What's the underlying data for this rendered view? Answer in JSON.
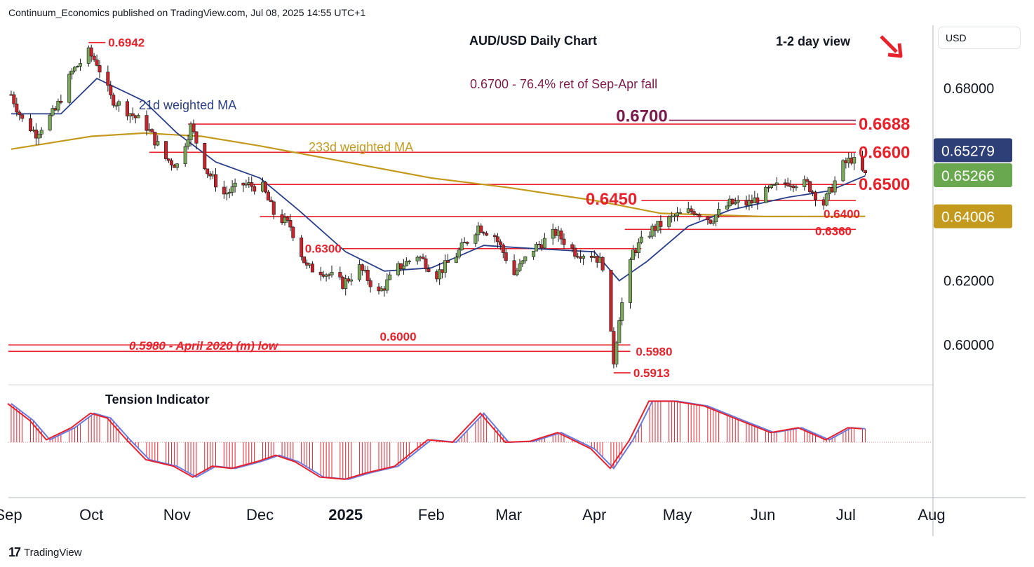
{
  "header": {
    "attribution": "Continuum_Economics published on TradingView.com, Jul 08, 2025 14:55 UTC+1",
    "currency_button": "USD"
  },
  "footer": {
    "logo_text": "TradingView",
    "logo_mark": "17"
  },
  "colors": {
    "red": "#e8212b",
    "dark_red": "#8a1a1a",
    "maroon": "#7a1a4a",
    "navy": "#2a3f8a",
    "gold": "#c49a1e",
    "tension_line": "#6a7be0",
    "green_badge": "#6aa84f",
    "blue_badge": "#2e3f78",
    "gold_badge": "#c49a1e",
    "candle_up": "#7aa85a",
    "candle_down": "#c8242c",
    "candle_outline": "#1a1a1a"
  },
  "chart_data": {
    "type": "candlestick",
    "title": "AUD/USD Daily Chart",
    "view_label": "1-2 day view",
    "view_arrow": "down-right-arrow",
    "y_ticks": [
      "0.68000",
      "0.62000",
      "0.60000"
    ],
    "ylim": [
      0.5878,
      0.6996
    ],
    "x_ticks": [
      {
        "label": "Sep",
        "date": "2024-09-01"
      },
      {
        "label": "Oct",
        "date": "2024-10-01"
      },
      {
        "label": "Nov",
        "date": "2024-11-01"
      },
      {
        "label": "Dec",
        "date": "2024-12-01"
      },
      {
        "label": "2025",
        "date": "2025-01-01",
        "bold": true
      },
      {
        "label": "Feb",
        "date": "2025-02-01"
      },
      {
        "label": "Mar",
        "date": "2025-03-01"
      },
      {
        "label": "Apr",
        "date": "2025-04-01"
      },
      {
        "label": "May",
        "date": "2025-05-01"
      },
      {
        "label": "Jun",
        "date": "2025-06-01"
      },
      {
        "label": "Jul",
        "date": "2025-07-01"
      },
      {
        "label": "Aug",
        "date": "2025-08-01"
      }
    ],
    "xlim": [
      "2024-09-01",
      "2025-08-01"
    ],
    "last_date": "2025-07-08",
    "price_badges": [
      {
        "label": "0.65279",
        "value": 0.65279,
        "color": "blue"
      },
      {
        "label": "0.65266",
        "value": 0.65266,
        "color": "green"
      },
      {
        "label": "0.64006",
        "value": 0.64006,
        "color": "gold"
      }
    ],
    "levels": [
      {
        "label": "0.6700",
        "value": 0.67,
        "from": "2025-04-28",
        "to": "2025-07-20",
        "color": "maroon",
        "label_size": "big",
        "label_pos": "left"
      },
      {
        "label": "0.6688",
        "value": 0.6688,
        "from": "2024-11-05",
        "to": "2025-07-20",
        "color": "red",
        "label_size": "big",
        "label_pos": "right"
      },
      {
        "label": "0.6600",
        "value": 0.66,
        "from": "2024-10-22",
        "to": "2025-07-20",
        "color": "red",
        "label_size": "big",
        "label_pos": "right"
      },
      {
        "label": "0.6500",
        "value": 0.65,
        "from": "2024-11-26",
        "to": "2025-07-20",
        "color": "red",
        "label_size": "big",
        "label_pos": "right"
      },
      {
        "label": "0.6450",
        "value": 0.645,
        "from": "2025-04-18",
        "to": "2025-07-20",
        "color": "red",
        "label_size": "big",
        "label_pos": "left"
      },
      {
        "label": "0.6400",
        "value": 0.64,
        "from": "2024-12-01",
        "to": "2025-07-20",
        "color": "red",
        "label_size": "small",
        "label_pos": "right"
      },
      {
        "label": "0.6360",
        "value": 0.636,
        "from": "2025-04-12",
        "to": "2025-07-20",
        "color": "red",
        "label_size": "small",
        "label_pos": "right"
      },
      {
        "label": "0.6300",
        "value": 0.63,
        "from": "2024-12-31",
        "to": "2025-04-18",
        "color": "red",
        "label_size": "small",
        "label_pos": "left"
      },
      {
        "label": "0.6000",
        "value": 0.6,
        "from": "2024-09-01",
        "to": "2025-04-14",
        "color": "red",
        "label_size": "small",
        "label_pos": "mid"
      },
      {
        "label": "0.5980",
        "value": 0.598,
        "from": "2024-09-01",
        "to": "2025-04-14",
        "color": "red",
        "label_size": "small",
        "label_pos": "right"
      }
    ],
    "point_labels": [
      {
        "label": "0.6942",
        "value": 0.6942,
        "date": "2024-09-30"
      },
      {
        "label": "0.5913",
        "value": 0.5913,
        "date": "2025-04-08"
      }
    ],
    "annotations": {
      "fib_note": "0.6700 - 76.4% ret of Sep-Apr fall",
      "ma21_label": "21d weighted MA",
      "ma233_label": "233d weighted MA",
      "april_low_note": "0.5980 - April 2020 (m) low",
      "tension_title": "Tension Indicator"
    },
    "price_path": [
      [
        "2024-09-02",
        0.678
      ],
      [
        "2024-09-06",
        0.67
      ],
      [
        "2024-09-11",
        0.666
      ],
      [
        "2024-09-18",
        0.673
      ],
      [
        "2024-09-24",
        0.685
      ],
      [
        "2024-09-30",
        0.691
      ],
      [
        "2024-10-03",
        0.688
      ],
      [
        "2024-10-08",
        0.677
      ],
      [
        "2024-10-14",
        0.673
      ],
      [
        "2024-10-21",
        0.668
      ],
      [
        "2024-10-28",
        0.658
      ],
      [
        "2024-11-01",
        0.656
      ],
      [
        "2024-11-06",
        0.668
      ],
      [
        "2024-11-12",
        0.654
      ],
      [
        "2024-11-18",
        0.647
      ],
      [
        "2024-11-25",
        0.65
      ],
      [
        "2024-12-02",
        0.649
      ],
      [
        "2024-12-06",
        0.641
      ],
      [
        "2024-12-12",
        0.637
      ],
      [
        "2024-12-18",
        0.624
      ],
      [
        "2024-12-24",
        0.623
      ],
      [
        "2024-12-31",
        0.619
      ],
      [
        "2025-01-06",
        0.624
      ],
      [
        "2025-01-13",
        0.616
      ],
      [
        "2025-01-20",
        0.624
      ],
      [
        "2025-01-27",
        0.628
      ],
      [
        "2025-02-03",
        0.622
      ],
      [
        "2025-02-10",
        0.628
      ],
      [
        "2025-02-18",
        0.637
      ],
      [
        "2025-02-24",
        0.634
      ],
      [
        "2025-03-03",
        0.622
      ],
      [
        "2025-03-10",
        0.63
      ],
      [
        "2025-03-18",
        0.635
      ],
      [
        "2025-03-25",
        0.629
      ],
      [
        "2025-04-01",
        0.628
      ],
      [
        "2025-04-04",
        0.625
      ],
      [
        "2025-04-08",
        0.595
      ],
      [
        "2025-04-10",
        0.609
      ],
      [
        "2025-04-15",
        0.629
      ],
      [
        "2025-04-22",
        0.636
      ],
      [
        "2025-04-30",
        0.64
      ],
      [
        "2025-05-07",
        0.642
      ],
      [
        "2025-05-13",
        0.639
      ],
      [
        "2025-05-20",
        0.644
      ],
      [
        "2025-05-27",
        0.644
      ],
      [
        "2025-06-03",
        0.648
      ],
      [
        "2025-06-10",
        0.651
      ],
      [
        "2025-06-17",
        0.65
      ],
      [
        "2025-06-23",
        0.644
      ],
      [
        "2025-06-30",
        0.656
      ],
      [
        "2025-07-03",
        0.658
      ],
      [
        "2025-07-08",
        0.6527
      ]
    ],
    "ma21_path": [
      [
        "2024-09-02",
        0.672
      ],
      [
        "2024-09-20",
        0.672
      ],
      [
        "2024-10-03",
        0.683
      ],
      [
        "2024-10-20",
        0.676
      ],
      [
        "2024-11-01",
        0.666
      ],
      [
        "2024-11-15",
        0.657
      ],
      [
        "2024-12-01",
        0.652
      ],
      [
        "2024-12-15",
        0.642
      ],
      [
        "2025-01-01",
        0.629
      ],
      [
        "2025-01-15",
        0.623
      ],
      [
        "2025-02-01",
        0.624
      ],
      [
        "2025-02-20",
        0.631
      ],
      [
        "2025-03-10",
        0.63
      ],
      [
        "2025-04-01",
        0.629
      ],
      [
        "2025-04-10",
        0.62
      ],
      [
        "2025-04-20",
        0.626
      ],
      [
        "2025-05-05",
        0.637
      ],
      [
        "2025-05-20",
        0.642
      ],
      [
        "2025-06-10",
        0.646
      ],
      [
        "2025-06-25",
        0.648
      ],
      [
        "2025-07-08",
        0.6527
      ]
    ],
    "ma233_path": [
      [
        "2024-09-02",
        0.661
      ],
      [
        "2024-10-01",
        0.665
      ],
      [
        "2024-10-20",
        0.666
      ],
      [
        "2024-11-10",
        0.665
      ],
      [
        "2024-12-01",
        0.662
      ],
      [
        "2025-01-01",
        0.657
      ],
      [
        "2025-02-01",
        0.652
      ],
      [
        "2025-03-01",
        0.649
      ],
      [
        "2025-04-01",
        0.645
      ],
      [
        "2025-04-25",
        0.641
      ],
      [
        "2025-06-01",
        0.64
      ],
      [
        "2025-07-08",
        0.64006
      ]
    ],
    "tension_indicator": {
      "type": "histogram",
      "ylim": [
        -1,
        1
      ],
      "values": [
        [
          "2024-09-02",
          0.8
        ],
        [
          "2024-09-10",
          0.45
        ],
        [
          "2024-09-16",
          0.05
        ],
        [
          "2024-09-25",
          0.3
        ],
        [
          "2024-10-02",
          0.6
        ],
        [
          "2024-10-08",
          0.5
        ],
        [
          "2024-10-15",
          0.05
        ],
        [
          "2024-10-22",
          -0.4
        ],
        [
          "2024-11-01",
          -0.55
        ],
        [
          "2024-11-08",
          -0.8
        ],
        [
          "2024-11-15",
          -0.55
        ],
        [
          "2024-11-22",
          -0.6
        ],
        [
          "2024-12-01",
          -0.45
        ],
        [
          "2024-12-08",
          -0.3
        ],
        [
          "2024-12-15",
          -0.45
        ],
        [
          "2024-12-24",
          -0.8
        ],
        [
          "2025-01-02",
          -0.85
        ],
        [
          "2025-01-10",
          -0.7
        ],
        [
          "2025-01-20",
          -0.55
        ],
        [
          "2025-02-01",
          0.05
        ],
        [
          "2025-02-10",
          0.0
        ],
        [
          "2025-02-20",
          0.6
        ],
        [
          "2025-03-01",
          0.0
        ],
        [
          "2025-03-10",
          0.02
        ],
        [
          "2025-03-20",
          0.2
        ],
        [
          "2025-04-01",
          -0.15
        ],
        [
          "2025-04-08",
          -0.6
        ],
        [
          "2025-04-15",
          0.05
        ],
        [
          "2025-04-22",
          0.85
        ],
        [
          "2025-05-01",
          0.85
        ],
        [
          "2025-05-12",
          0.75
        ],
        [
          "2025-05-25",
          0.45
        ],
        [
          "2025-06-05",
          0.2
        ],
        [
          "2025-06-15",
          0.3
        ],
        [
          "2025-06-25",
          0.05
        ],
        [
          "2025-07-03",
          0.3
        ],
        [
          "2025-07-08",
          0.28
        ]
      ]
    }
  }
}
